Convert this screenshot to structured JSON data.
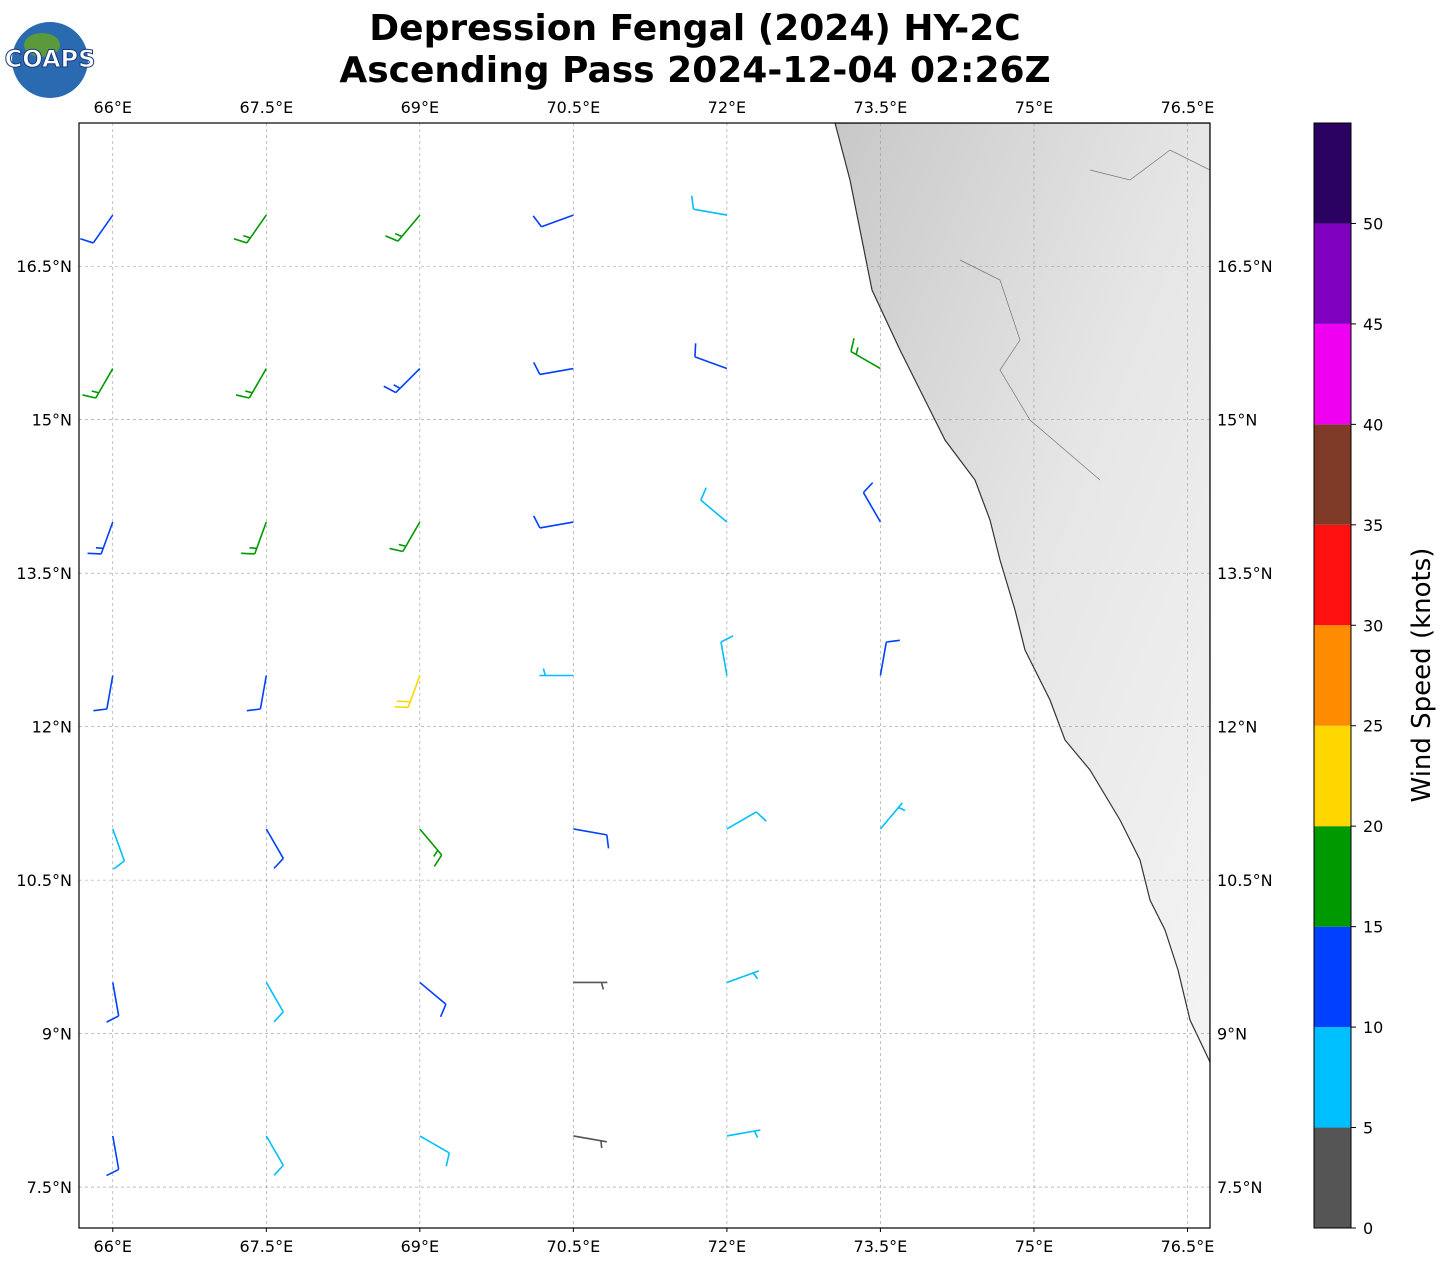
{
  "chart_data": {
    "type": "barbs",
    "title": "Depression Fengal (2024) HY-2C",
    "subtitle": "Ascending Pass 2024-12-04 02:26Z",
    "logo": "COAPS",
    "xlim": [
      65.67,
      76.72
    ],
    "ylim": [
      7.1,
      17.9
    ],
    "xticks": [
      {
        "value": 66,
        "label": "66°E"
      },
      {
        "value": 67.5,
        "label": "67.5°E"
      },
      {
        "value": 69,
        "label": "69°E"
      },
      {
        "value": 70.5,
        "label": "70.5°E"
      },
      {
        "value": 72,
        "label": "72°E"
      },
      {
        "value": 73.5,
        "label": "73.5°E"
      },
      {
        "value": 75,
        "label": "75°E"
      },
      {
        "value": 76.5,
        "label": "76.5°E"
      }
    ],
    "yticks": [
      {
        "value": 7.5,
        "label": "7.5°N"
      },
      {
        "value": 9,
        "label": "9°N"
      },
      {
        "value": 10.5,
        "label": "10.5°N"
      },
      {
        "value": 12,
        "label": "12°N"
      },
      {
        "value": 13.5,
        "label": "13.5°N"
      },
      {
        "value": 15,
        "label": "15°N"
      },
      {
        "value": 16.5,
        "label": "16.5°N"
      }
    ],
    "grid": true,
    "barbs": [
      [
        66,
        17,
        12,
        215
      ],
      [
        67.5,
        17,
        17,
        215
      ],
      [
        69,
        17,
        17,
        220
      ],
      [
        70.5,
        17,
        12,
        250
      ],
      [
        72,
        17,
        8,
        280
      ],
      [
        66,
        15.5,
        17,
        210
      ],
      [
        67.5,
        15.5,
        17,
        210
      ],
      [
        69,
        15.5,
        13,
        225
      ],
      [
        70.5,
        15.5,
        12,
        260
      ],
      [
        72,
        15.5,
        12,
        290
      ],
      [
        73.5,
        15.5,
        16,
        300
      ],
      [
        66,
        14,
        13,
        200
      ],
      [
        67.5,
        14,
        17,
        200
      ],
      [
        69,
        14,
        17,
        210
      ],
      [
        70.5,
        14,
        12,
        260
      ],
      [
        72,
        14,
        8,
        310
      ],
      [
        73.5,
        14,
        12,
        330
      ],
      [
        66,
        12.5,
        12,
        190
      ],
      [
        67.5,
        12.5,
        12,
        190
      ],
      [
        69,
        12.5,
        22,
        200
      ],
      [
        70.5,
        12.5,
        7,
        270
      ],
      [
        72,
        12.5,
        8,
        350
      ],
      [
        73.5,
        12.5,
        12,
        10
      ],
      [
        66,
        11,
        8,
        160
      ],
      [
        67.5,
        11,
        12,
        150
      ],
      [
        69,
        11,
        17,
        140
      ],
      [
        70.5,
        11,
        12,
        100
      ],
      [
        72,
        11,
        8,
        60
      ],
      [
        73.5,
        11,
        7,
        40
      ],
      [
        66,
        9.5,
        12,
        170
      ],
      [
        67.5,
        9.5,
        8,
        150
      ],
      [
        69,
        9.5,
        12,
        130
      ],
      [
        70.5,
        9.5,
        4,
        90
      ],
      [
        72,
        9.5,
        7,
        70
      ],
      [
        66,
        8,
        12,
        170
      ],
      [
        67.5,
        8,
        8,
        150
      ],
      [
        69,
        8,
        8,
        120
      ],
      [
        70.5,
        8,
        4,
        100
      ],
      [
        72,
        8,
        7,
        80
      ]
    ],
    "colorbar": {
      "label": "Wind Speed (knots)",
      "lim": [
        0,
        55
      ],
      "bounds": [
        0,
        5,
        10,
        15,
        20,
        25,
        30,
        35,
        40,
        45,
        50,
        55
      ],
      "colors": [
        "#555555",
        "#00bfff",
        "#0040ff",
        "#009900",
        "#ffd700",
        "#ff8c00",
        "#ff1010",
        "#7f3a28",
        "#f000f0",
        "#7f00bf",
        "#2a0060"
      ],
      "ticks": [
        0,
        5,
        10,
        15,
        20,
        25,
        30,
        35,
        40,
        45,
        50
      ]
    }
  }
}
